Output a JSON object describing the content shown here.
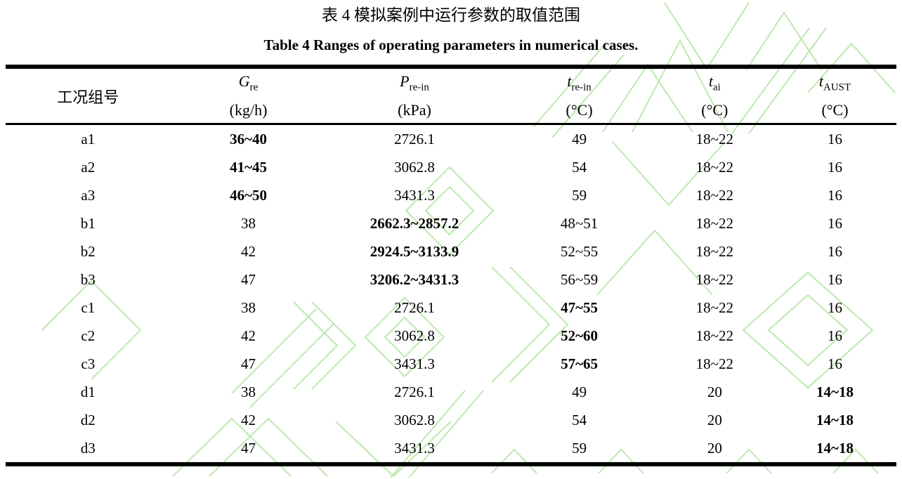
{
  "colors": {
    "watermark": "#bce9ae",
    "text": "#000000"
  },
  "titles": {
    "zh": "表 4 模拟案例中运行参数的取值范围",
    "en": "Table 4 Ranges of operating parameters in numerical cases."
  },
  "table": {
    "columns": [
      {
        "symbol": "工况组号",
        "sub": "",
        "unit": ""
      },
      {
        "symbol": "G",
        "sub": "re",
        "unit": "(kg/h)"
      },
      {
        "symbol": "P",
        "sub": "re-in",
        "unit": "(kPa)"
      },
      {
        "symbol": "t",
        "sub": "re-in",
        "unit": "(°C)"
      },
      {
        "symbol": "t",
        "sub": "ai",
        "unit": "(°C)"
      },
      {
        "symbol": "t",
        "sub": "AUST",
        "unit": "(°C)"
      }
    ],
    "rows": [
      {
        "cells": [
          "a1",
          "36~40",
          "2726.1",
          "49",
          "18~22",
          "16"
        ],
        "bold_col": 1
      },
      {
        "cells": [
          "a2",
          "41~45",
          "3062.8",
          "54",
          "18~22",
          "16"
        ],
        "bold_col": 1
      },
      {
        "cells": [
          "a3",
          "46~50",
          "3431.3",
          "59",
          "18~22",
          "16"
        ],
        "bold_col": 1
      },
      {
        "cells": [
          "b1",
          "38",
          "2662.3~2857.2",
          "48~51",
          "18~22",
          "16"
        ],
        "bold_col": 2
      },
      {
        "cells": [
          "b2",
          "42",
          "2924.5~3133.9",
          "52~55",
          "18~22",
          "16"
        ],
        "bold_col": 2
      },
      {
        "cells": [
          "b3",
          "47",
          "3206.2~3431.3",
          "56~59",
          "18~22",
          "16"
        ],
        "bold_col": 2
      },
      {
        "cells": [
          "c1",
          "38",
          "2726.1",
          "47~55",
          "18~22",
          "16"
        ],
        "bold_col": 3
      },
      {
        "cells": [
          "c2",
          "42",
          "3062.8",
          "52~60",
          "18~22",
          "16"
        ],
        "bold_col": 3
      },
      {
        "cells": [
          "c3",
          "47",
          "3431.3",
          "57~65",
          "18~22",
          "16"
        ],
        "bold_col": 3
      },
      {
        "cells": [
          "d1",
          "38",
          "2726.1",
          "49",
          "20",
          "14~18"
        ],
        "bold_col": 5
      },
      {
        "cells": [
          "d2",
          "42",
          "3062.8",
          "54",
          "20",
          "14~18"
        ],
        "bold_col": 5
      },
      {
        "cells": [
          "d3",
          "47",
          "3431.3",
          "59",
          "20",
          "14~18"
        ],
        "bold_col": 5
      }
    ]
  }
}
